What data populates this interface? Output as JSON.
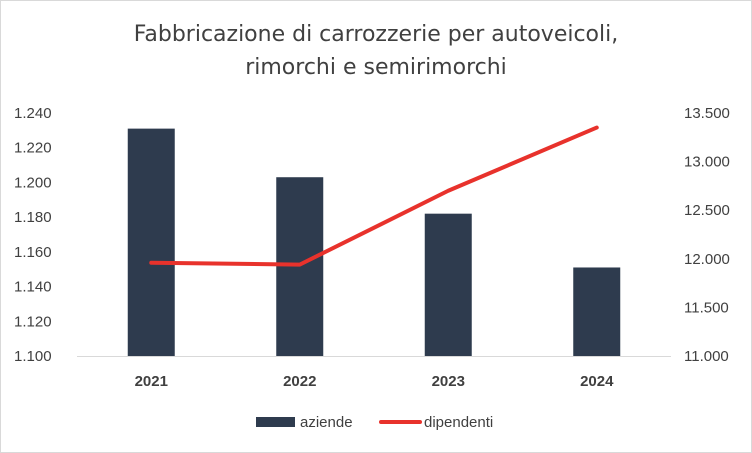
{
  "chart_data": {
    "type": "bar+line",
    "title_line1": "Fabbricazione di carrozzerie per autoveicoli,",
    "title_line2": "rimorchi e semirimorchi",
    "categories": [
      "2021",
      "2022",
      "2023",
      "2024"
    ],
    "series": [
      {
        "name": "aziende",
        "type": "bar",
        "axis": "left",
        "color": "#2e3b4e",
        "values": [
          1231,
          1203,
          1182,
          1151
        ]
      },
      {
        "name": "dipendenti",
        "type": "line",
        "axis": "right",
        "color": "#e8322c",
        "values": [
          11960,
          11940,
          12700,
          13350
        ]
      }
    ],
    "y_left": {
      "min": 1100,
      "max": 1240,
      "ticks": [
        "1.100",
        "1.120",
        "1.140",
        "1.160",
        "1.180",
        "1.200",
        "1.220",
        "1.240"
      ]
    },
    "y_right": {
      "min": 11000,
      "max": 13500,
      "ticks": [
        "11.000",
        "11.500",
        "12.000",
        "12.500",
        "13.000",
        "13.500"
      ]
    },
    "grid": false,
    "legend_position": "bottom"
  }
}
